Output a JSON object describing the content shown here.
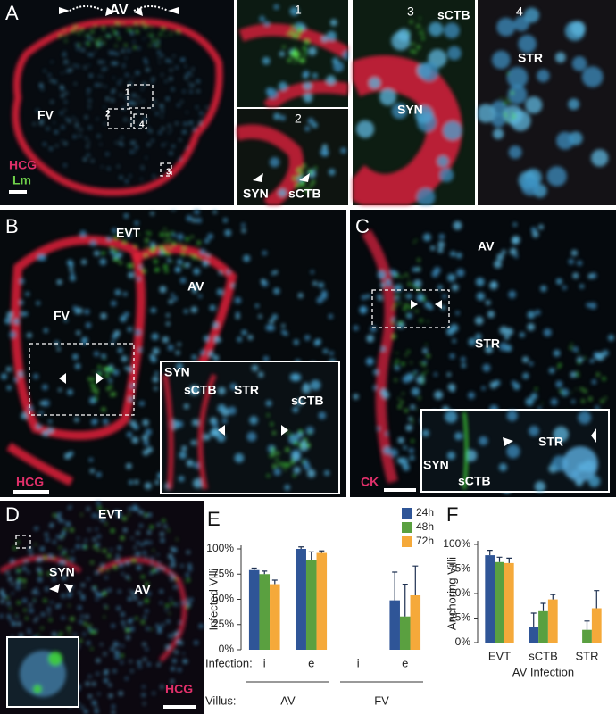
{
  "figure": {
    "panel_A": {
      "label": "A",
      "top_label": "AV",
      "region_label": "FV",
      "stain_1": "HCG",
      "stain_2": "Lm",
      "box_labels": [
        "1",
        "2",
        "4",
        "3"
      ]
    },
    "inset_1": {
      "label": "1"
    },
    "inset_2": {
      "label": "2",
      "annotations": [
        "SYN",
        "sCTB"
      ]
    },
    "inset_3": {
      "label": "3",
      "annotations": [
        "sCTB",
        "SYN"
      ]
    },
    "inset_4": {
      "label": "4",
      "annotations": [
        "STR"
      ]
    },
    "panel_B": {
      "label": "B",
      "annotations": [
        "EVT",
        "AV",
        "FV"
      ],
      "inset_annotations": [
        "SYN",
        "sCTB",
        "STR",
        "sCTB"
      ],
      "stain": "HCG"
    },
    "panel_C": {
      "label": "C",
      "annotations": [
        "AV",
        "STR"
      ],
      "inset_annotations": [
        "STR",
        "SYN",
        "sCTB"
      ],
      "stain": "CK"
    },
    "panel_D": {
      "label": "D",
      "annotations": [
        "EVT",
        "SYN",
        "AV"
      ],
      "stain": "HCG"
    }
  },
  "chart_data": [
    {
      "type": "bar",
      "panel_label": "E",
      "y_label": "Infected Villi",
      "categories": [
        "i",
        "e",
        "i",
        "e"
      ],
      "category_groups": [
        "AV",
        "FV"
      ],
      "row_labels": [
        "Infection:",
        "Villus:"
      ],
      "ylim": [
        0,
        100
      ],
      "yticks": [
        {
          "value": 0,
          "label": "0%"
        },
        {
          "value": 25,
          "label": "25%"
        },
        {
          "value": 50,
          "label": "50%"
        },
        {
          "value": 75,
          "label": "75%"
        },
        {
          "value": 100,
          "label": "100%"
        }
      ],
      "series": [
        {
          "name": "24h",
          "color": "#2f5597",
          "values": [
            79,
            100,
            null,
            49
          ],
          "errors": [
            2,
            2,
            null,
            28
          ]
        },
        {
          "name": "48h",
          "color": "#5aa040",
          "values": [
            75,
            89,
            null,
            33
          ],
          "errors": [
            3,
            8,
            null,
            32
          ]
        },
        {
          "name": "72h",
          "color": "#f5a93a",
          "values": [
            65,
            96,
            null,
            54
          ],
          "errors": [
            4,
            2,
            null,
            29
          ]
        }
      ]
    },
    {
      "type": "bar",
      "panel_label": "F",
      "y_label": "Anchoring Villi",
      "x_label": "AV Infection",
      "categories": [
        "EVT",
        "sCTB",
        "STR"
      ],
      "ylim": [
        0,
        100
      ],
      "yticks": [
        {
          "value": 0,
          "label": "0%"
        },
        {
          "value": 25,
          "label": "25%"
        },
        {
          "value": 50,
          "label": "50%"
        },
        {
          "value": 75,
          "label": "75%"
        },
        {
          "value": 100,
          "label": "100%"
        }
      ],
      "series": [
        {
          "color": "#2f5597",
          "values": [
            89,
            16,
            null
          ],
          "errors": [
            5,
            14,
            null
          ]
        },
        {
          "color": "#5aa040",
          "values": [
            82,
            32,
            13
          ],
          "errors": [
            5,
            8,
            9
          ]
        },
        {
          "color": "#f5a93a",
          "values": [
            81,
            44,
            35
          ],
          "errors": [
            5,
            5,
            18
          ]
        }
      ]
    }
  ]
}
